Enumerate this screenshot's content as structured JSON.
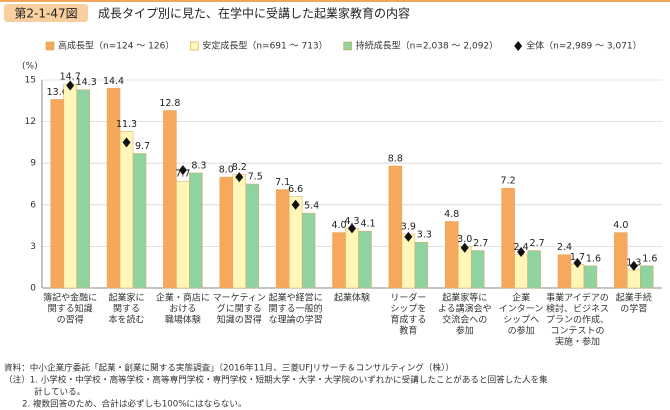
{
  "chart_data": {
    "type": "bar",
    "figure_label": "第2-1-47図",
    "title": "成長タイプ別に見た、在学中に受講した起業家教育の内容",
    "y_unit": "(%)",
    "categories": [
      [
        "簿記や金融に",
        "関する知識",
        "の習得"
      ],
      [
        "起業家に",
        "関する",
        "本を読む"
      ],
      [
        "企業・商店に",
        "おける",
        "職場体験"
      ],
      [
        "マーケティン",
        "グに関する",
        "知識の習得"
      ],
      [
        "起業や経営に",
        "関する一般的",
        "な理論の学習"
      ],
      [
        "起業体験"
      ],
      [
        "リーダー",
        "シップを",
        "育成する",
        "教育"
      ],
      [
        "起業家等に",
        "よる講演会や",
        "交流会への",
        "参加"
      ],
      [
        "企業",
        "インターン",
        "シップへ",
        "の参加"
      ],
      [
        "事業アイデアの",
        "検討、ビジネス",
        "プランの作成、",
        "コンテストの",
        "実施・参加"
      ],
      [
        "起業手続",
        "の学習"
      ]
    ],
    "series": [
      {
        "name": "高成長型（n=124 ～ 126）",
        "color": "#f6a85c",
        "values": [
          13.6,
          14.4,
          12.8,
          8.0,
          7.1,
          4.0,
          8.8,
          4.8,
          7.2,
          2.4,
          4.0
        ],
        "value_labels": [
          "13.6",
          "14.4",
          "12.8",
          "8.0",
          "7.1",
          "4.0",
          "8.8",
          "4.8",
          "7.2",
          "2.4",
          "4.0"
        ]
      },
      {
        "name": "安定成長型（n=691 ～ 713）",
        "color": "#fff6b8",
        "values": [
          14.7,
          11.3,
          7.7,
          8.2,
          6.6,
          4.3,
          3.9,
          3.0,
          2.4,
          1.7,
          1.3
        ],
        "value_labels": [
          "14.7",
          "11.3",
          "7.7",
          "8.2",
          "6.6",
          "4.3",
          "3.9",
          "3.0",
          "2.4",
          "1.7",
          "1.3"
        ]
      },
      {
        "name": "持続成長型（n=2,038 ～ 2,092）",
        "color": "#8fd3a0",
        "values": [
          14.3,
          9.7,
          8.3,
          7.5,
          5.4,
          4.1,
          3.3,
          2.7,
          2.7,
          1.6,
          1.6
        ],
        "value_labels": [
          "14.3",
          "9.7",
          "8.3",
          "7.5",
          "5.4",
          "4.1",
          "3.3",
          "2.7",
          "2.7",
          "1.6",
          "1.6"
        ]
      },
      {
        "name": "全体（n=2,989 ～ 3,071）",
        "color": "#111111",
        "marker": "diamond",
        "values": [
          14.6,
          10.5,
          8.5,
          8.0,
          6.0,
          4.3,
          3.7,
          2.9,
          2.6,
          1.8,
          1.6
        ]
      }
    ],
    "ylim": [
      0,
      15
    ],
    "yticks": [
      0,
      3,
      6,
      9,
      12,
      15
    ],
    "grid": true,
    "legend": "top",
    "notes": [
      "資料：中小企業庁委託「起業・創業に関する実態調査」（2016年11月、三菱UFJリサーチ＆コンサルティング（株））",
      "（注）1. 小学校・中学校・高等学校・高等専門学校・専門学校・短期大学・大学・大学院のいずれかに受講したことがあると回答した人を集",
      "計している。",
      "2. 複数回答のため、合計は必ずしも100%にはならない。"
    ]
  }
}
